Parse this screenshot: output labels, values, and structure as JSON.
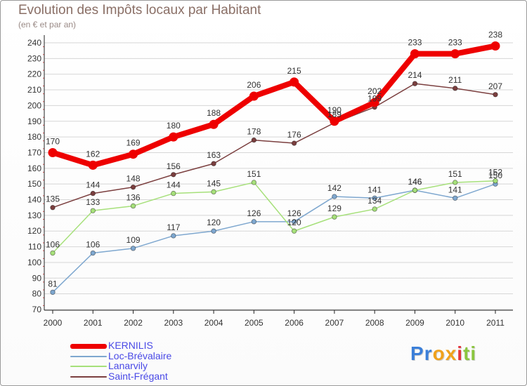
{
  "header": {
    "title": "Evolution des Impôts locaux par Habitant",
    "subtitle": "(en € et par an)"
  },
  "chart_data": {
    "type": "line",
    "title": "Evolution des Impôts locaux par Habitant",
    "ylabel": "(en € et par an)",
    "xlabel": "",
    "categories": [
      "2000",
      "2001",
      "2002",
      "2003",
      "2004",
      "2005",
      "2006",
      "2007",
      "2008",
      "2009",
      "2010",
      "2011"
    ],
    "ylim": [
      70,
      240
    ],
    "yticks": [
      70,
      80,
      90,
      100,
      110,
      120,
      130,
      140,
      150,
      160,
      170,
      180,
      190,
      200,
      210,
      220,
      230,
      240
    ],
    "grid": "horizontal",
    "legend_position": "bottom-left",
    "series": [
      {
        "name": "KERNILIS",
        "color": "#ee0000",
        "values": [
          170,
          162,
          169,
          180,
          188,
          206,
          215,
          190,
          202,
          233,
          233,
          238
        ]
      },
      {
        "name": "Loc-Brévalaire",
        "color": "#7ea7cf",
        "values": [
          81,
          106,
          109,
          117,
          120,
          126,
          126,
          142,
          141,
          146,
          141,
          150
        ]
      },
      {
        "name": "Lanarvily",
        "color": "#a6e07a",
        "values": [
          106,
          133,
          136,
          144,
          145,
          151,
          120,
          129,
          134,
          146,
          151,
          152
        ]
      },
      {
        "name": "Saint-Frégant",
        "color": "#7b3f3f",
        "values": [
          135,
          144,
          148,
          156,
          163,
          178,
          176,
          189,
          199,
          214,
          211,
          207
        ]
      }
    ]
  },
  "brand": {
    "letters": [
      "P",
      "r",
      "o",
      "x",
      "i",
      "t",
      "i"
    ],
    "colors": [
      "#3b7fd9",
      "#3b7fd9",
      "#f0a21c",
      "#f0a21c",
      "#e4343a",
      "#8bc63f",
      "#8bc63f"
    ]
  }
}
